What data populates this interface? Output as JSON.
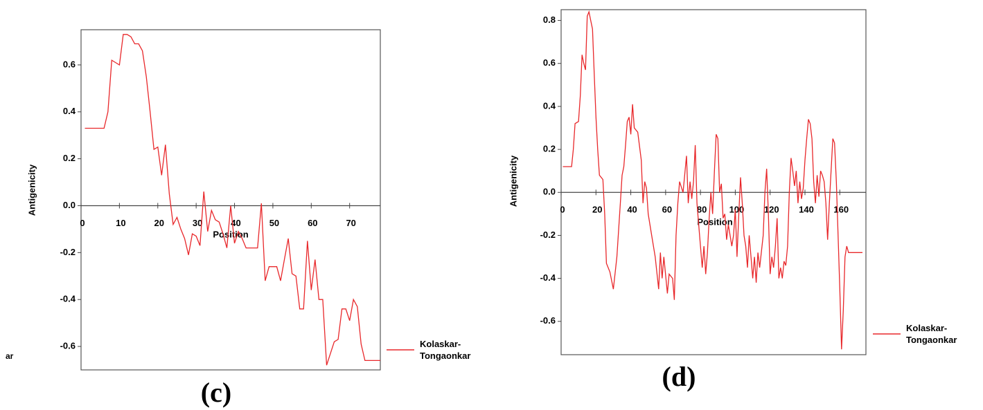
{
  "fragment": "ar",
  "chart_data": [
    {
      "type": "line",
      "panel_label": "(c)",
      "y_label": "Antigenicity",
      "x_label": "Position",
      "xlim": [
        0,
        78
      ],
      "xticks": [
        0,
        10,
        20,
        30,
        40,
        50,
        60,
        70
      ],
      "ylim": [
        -0.7,
        0.75
      ],
      "yticks": [
        0.6,
        0.4,
        0.2,
        {
          "value": 0,
          "label": "0.0"
        },
        -0.2,
        -0.4,
        -0.6
      ],
      "x": [
        1,
        2,
        3,
        4,
        5,
        6,
        7,
        8,
        9,
        10,
        11,
        12,
        13,
        14,
        15,
        16,
        17,
        18,
        19,
        20,
        21,
        22,
        23,
        24,
        25,
        26,
        27,
        28,
        29,
        30,
        31,
        32,
        33,
        34,
        35,
        36,
        37,
        38,
        39,
        40,
        41,
        42,
        43,
        44,
        45,
        46,
        47,
        48,
        49,
        50,
        51,
        52,
        53,
        54,
        55,
        56,
        57,
        58,
        59,
        60,
        61,
        62,
        63,
        64,
        65,
        66,
        67,
        68,
        69,
        70,
        71,
        72,
        73,
        74,
        75,
        76,
        77,
        78
      ],
      "series": [
        {
          "name": "Kolaskar-Tongaonkar",
          "color": "#e8272a",
          "values": [
            0.33,
            0.33,
            0.33,
            0.33,
            0.33,
            0.33,
            0.4,
            0.62,
            0.61,
            0.6,
            0.73,
            0.73,
            0.72,
            0.69,
            0.69,
            0.66,
            0.55,
            0.4,
            0.24,
            0.25,
            0.13,
            0.26,
            0.05,
            -0.08,
            -0.05,
            -0.1,
            -0.14,
            -0.21,
            -0.12,
            -0.13,
            -0.17,
            0.06,
            -0.11,
            -0.02,
            -0.06,
            -0.07,
            -0.12,
            -0.18,
            0.0,
            -0.16,
            -0.11,
            -0.14,
            -0.18,
            -0.18,
            -0.18,
            -0.18,
            0.01,
            -0.32,
            -0.26,
            -0.26,
            -0.26,
            -0.32,
            -0.23,
            -0.14,
            -0.29,
            -0.3,
            -0.44,
            -0.44,
            -0.15,
            -0.36,
            -0.23,
            -0.4,
            -0.4,
            -0.68,
            -0.63,
            -0.58,
            -0.57,
            -0.44,
            -0.44,
            -0.49,
            -0.4,
            -0.43,
            -0.59,
            -0.66,
            -0.66,
            -0.66,
            -0.66,
            -0.66
          ]
        }
      ]
    },
    {
      "type": "line",
      "panel_label": "(d)",
      "y_label": "Antigenicity",
      "x_label": "Position",
      "xlim": [
        0,
        175
      ],
      "xticks": [
        0,
        20,
        40,
        60,
        80,
        100,
        120,
        140,
        160
      ],
      "ylim": [
        -0.755,
        0.85
      ],
      "yticks": [
        0.8,
        0.6,
        0.4,
        0.2,
        {
          "value": 0,
          "label": "0.0"
        },
        -0.2,
        -0.4,
        -0.6
      ],
      "x": [
        1,
        6,
        7,
        8,
        10,
        11,
        12,
        13,
        14,
        15,
        16,
        17,
        18,
        19,
        20,
        21,
        22,
        24,
        25,
        26,
        28,
        30,
        32,
        34,
        35,
        36,
        37,
        38,
        39,
        40,
        41,
        42,
        44,
        46,
        47,
        48,
        49,
        50,
        52,
        54,
        56,
        57,
        58,
        59,
        61,
        62,
        64,
        65,
        66,
        67,
        68,
        70,
        72,
        73,
        74,
        75,
        76,
        77,
        78,
        79,
        81,
        82,
        83,
        84,
        85,
        86,
        87,
        88,
        89,
        90,
        91,
        92,
        93,
        94,
        95,
        96,
        98,
        99,
        100,
        101,
        102,
        103,
        104,
        105,
        106,
        107,
        108,
        109,
        110,
        111,
        112,
        113,
        114,
        116,
        117,
        118,
        119,
        120,
        121,
        122,
        123,
        124,
        125,
        126,
        127,
        128,
        129,
        130,
        131,
        132,
        133,
        134,
        135,
        136,
        137,
        138,
        139,
        140,
        141,
        142,
        143,
        144,
        145,
        146,
        147,
        148,
        149,
        150,
        151,
        152,
        153,
        154,
        155,
        156,
        157,
        158,
        159,
        160,
        161,
        162,
        163,
        164,
        165,
        173
      ],
      "series": [
        {
          "name": "Kolaskar-Tongaonkar",
          "color": "#e8272a",
          "values": [
            0.12,
            0.12,
            0.2,
            0.32,
            0.33,
            0.45,
            0.64,
            0.6,
            0.57,
            0.82,
            0.84,
            0.8,
            0.76,
            0.55,
            0.35,
            0.2,
            0.08,
            0.06,
            -0.1,
            -0.33,
            -0.37,
            -0.45,
            -0.3,
            -0.05,
            0.08,
            0.12,
            0.22,
            0.33,
            0.35,
            0.27,
            0.41,
            0.3,
            0.28,
            0.15,
            -0.05,
            0.05,
            0.02,
            -0.1,
            -0.2,
            -0.3,
            -0.45,
            -0.28,
            -0.4,
            -0.3,
            -0.47,
            -0.38,
            -0.4,
            -0.5,
            -0.2,
            -0.05,
            0.05,
            0.0,
            0.17,
            -0.05,
            0.05,
            -0.03,
            0.05,
            0.22,
            -0.05,
            -0.15,
            -0.35,
            -0.25,
            -0.38,
            -0.28,
            -0.12,
            0.0,
            -0.1,
            0.1,
            0.27,
            0.25,
            0.0,
            0.04,
            -0.12,
            -0.1,
            -0.22,
            -0.15,
            -0.25,
            -0.2,
            -0.08,
            -0.3,
            -0.1,
            0.07,
            -0.05,
            -0.2,
            -0.25,
            -0.35,
            -0.2,
            -0.3,
            -0.4,
            -0.3,
            -0.42,
            -0.28,
            -0.35,
            -0.2,
            0.0,
            0.11,
            -0.1,
            -0.38,
            -0.3,
            -0.35,
            -0.25,
            -0.12,
            -0.4,
            -0.35,
            -0.4,
            -0.32,
            -0.34,
            -0.25,
            0.0,
            0.16,
            0.1,
            0.03,
            0.1,
            -0.05,
            0.05,
            -0.03,
            0.02,
            0.15,
            0.25,
            0.34,
            0.32,
            0.25,
            0.05,
            -0.05,
            0.08,
            -0.02,
            0.1,
            0.08,
            0.05,
            -0.05,
            -0.22,
            -0.05,
            0.1,
            0.25,
            0.23,
            0.05,
            -0.2,
            -0.45,
            -0.73,
            -0.55,
            -0.3,
            -0.25,
            -0.28,
            -0.28
          ]
        }
      ]
    }
  ]
}
